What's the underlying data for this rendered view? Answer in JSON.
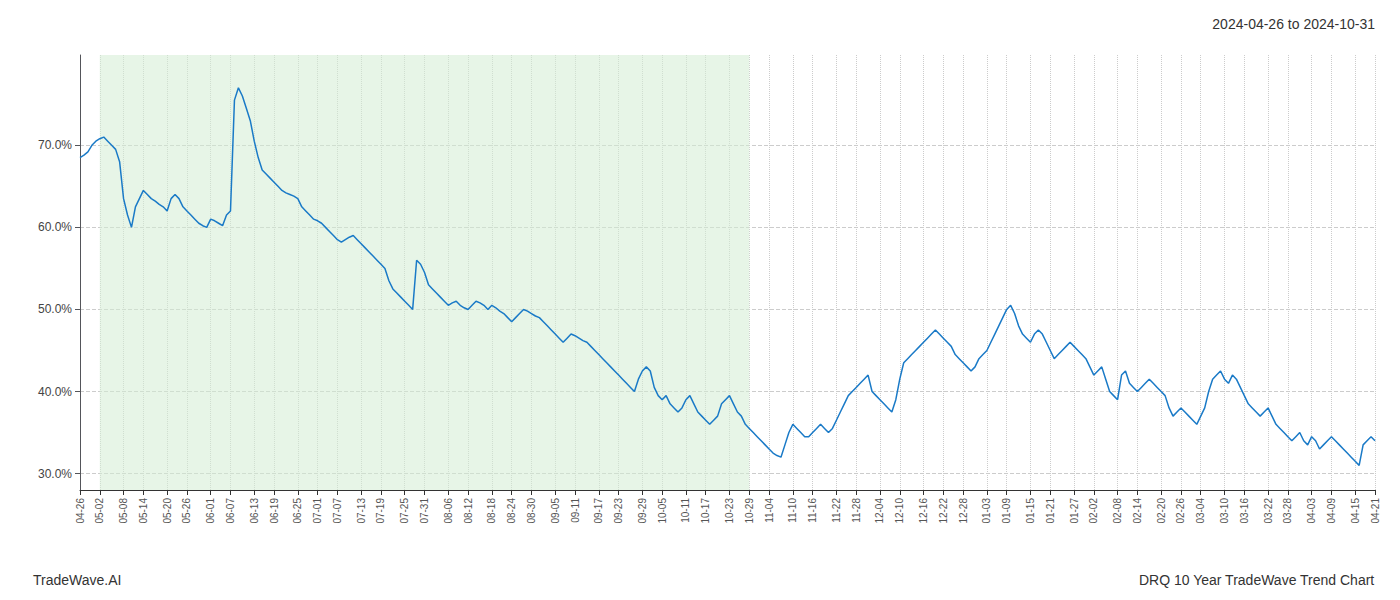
{
  "chart_data": {
    "type": "line",
    "title": "2024-04-26 to 2024-10-31",
    "annotations": [
      "TradeWave.AI",
      "DRQ 10 Year TradeWave Trend Chart"
    ],
    "color": "#1a7ac7",
    "shade": {
      "from": "05-02",
      "to": "10-29",
      "color": "#d4ecd4"
    },
    "grid": true,
    "ylim": [
      28.0,
      81.0
    ],
    "yticks": [
      {
        "value": 30.0,
        "label": "30.0%"
      },
      {
        "value": 40.0,
        "label": "40.0%"
      },
      {
        "value": 50.0,
        "label": "50.0%"
      },
      {
        "value": 60.0,
        "label": "60.0%"
      },
      {
        "value": 70.0,
        "label": "70.0%"
      }
    ],
    "categories": [
      "04-26",
      null,
      null,
      null,
      null,
      "05-02",
      null,
      null,
      null,
      null,
      null,
      "05-08",
      null,
      null,
      null,
      null,
      "05-14",
      null,
      null,
      null,
      null,
      null,
      "05-20",
      null,
      null,
      null,
      null,
      "05-26",
      null,
      null,
      null,
      null,
      null,
      "06-01",
      null,
      null,
      null,
      null,
      "06-07",
      null,
      null,
      null,
      null,
      null,
      "06-13",
      null,
      null,
      null,
      null,
      "06-19",
      null,
      null,
      null,
      null,
      null,
      "06-25",
      null,
      null,
      null,
      null,
      "07-01",
      null,
      null,
      null,
      null,
      "07-07",
      null,
      null,
      null,
      null,
      null,
      "07-13",
      null,
      null,
      null,
      null,
      "07-19",
      null,
      null,
      null,
      null,
      null,
      "07-25",
      null,
      null,
      null,
      null,
      "07-31",
      null,
      null,
      null,
      null,
      null,
      "08-06",
      null,
      null,
      null,
      null,
      "08-12",
      null,
      null,
      null,
      null,
      null,
      "08-18",
      null,
      null,
      null,
      null,
      "08-24",
      null,
      null,
      null,
      null,
      "08-30",
      null,
      null,
      null,
      null,
      null,
      "09-05",
      null,
      null,
      null,
      null,
      "09-11",
      null,
      null,
      null,
      null,
      null,
      "09-17",
      null,
      null,
      null,
      null,
      "09-23",
      null,
      null,
      null,
      null,
      null,
      "09-29",
      null,
      null,
      null,
      null,
      "10-05",
      null,
      null,
      null,
      null,
      null,
      "10-11",
      null,
      null,
      null,
      null,
      "10-17",
      null,
      null,
      null,
      null,
      null,
      "10-23",
      null,
      null,
      null,
      null,
      "10-29",
      null,
      null,
      null,
      null,
      "11-04",
      null,
      null,
      null,
      null,
      null,
      "11-10",
      null,
      null,
      null,
      null,
      "11-16",
      null,
      null,
      null,
      null,
      null,
      "11-22",
      null,
      null,
      null,
      null,
      "11-28",
      null,
      null,
      null,
      null,
      null,
      "12-04",
      null,
      null,
      null,
      null,
      "12-10",
      null,
      null,
      null,
      null,
      null,
      "12-16",
      null,
      null,
      null,
      null,
      "12-22",
      null,
      null,
      null,
      null,
      "12-28",
      null,
      null,
      null,
      null,
      null,
      "01-03",
      null,
      null,
      null,
      null,
      "01-09",
      null,
      null,
      null,
      null,
      null,
      "01-15",
      null,
      null,
      null,
      null,
      "01-21",
      null,
      null,
      null,
      null,
      null,
      "01-27",
      null,
      null,
      null,
      null,
      "02-02",
      null,
      null,
      null,
      null,
      null,
      "02-08",
      null,
      null,
      null,
      null,
      "02-14",
      null,
      null,
      null,
      null,
      null,
      "02-20",
      null,
      null,
      null,
      null,
      "02-26",
      null,
      null,
      null,
      null,
      "03-04",
      null,
      null,
      null,
      null,
      null,
      "03-10",
      null,
      null,
      null,
      null,
      "03-16",
      null,
      null,
      null,
      null,
      null,
      "03-22",
      null,
      null,
      null,
      null,
      "03-28",
      null,
      null,
      null,
      null,
      null,
      "04-03",
      null,
      null,
      null,
      null,
      "04-09",
      null,
      null,
      null,
      null,
      null,
      "04-15",
      null,
      null,
      null,
      null,
      "04-21"
    ],
    "values": [
      68.5,
      68.8,
      69.2,
      70.0,
      70.5,
      70.8,
      71.0,
      70.5,
      70.0,
      69.5,
      68.0,
      63.5,
      61.5,
      60.0,
      62.5,
      63.5,
      64.5,
      64.0,
      63.5,
      63.2,
      62.8,
      62.5,
      62.0,
      63.5,
      64.0,
      63.5,
      62.5,
      62.0,
      61.5,
      61.0,
      60.5,
      60.2,
      60.0,
      61.0,
      60.8,
      60.5,
      60.2,
      61.5,
      62.0,
      75.5,
      77.0,
      76.0,
      74.5,
      73.0,
      70.5,
      68.5,
      67.0,
      66.5,
      66.0,
      65.5,
      65.0,
      64.5,
      64.2,
      64.0,
      63.8,
      63.5,
      62.5,
      62.0,
      61.5,
      61.0,
      60.8,
      60.5,
      60.0,
      59.5,
      59.0,
      58.5,
      58.2,
      58.5,
      58.8,
      59.0,
      58.5,
      58.0,
      57.5,
      57.0,
      56.5,
      56.0,
      55.5,
      55.0,
      53.5,
      52.5,
      52.0,
      51.5,
      51.0,
      50.5,
      50.0,
      56.0,
      55.5,
      54.5,
      53.0,
      52.5,
      52.0,
      51.5,
      51.0,
      50.5,
      50.8,
      51.0,
      50.5,
      50.2,
      50.0,
      50.5,
      51.0,
      50.8,
      50.5,
      50.0,
      50.5,
      50.2,
      49.8,
      49.5,
      49.0,
      48.5,
      49.0,
      49.5,
      50.0,
      49.8,
      49.5,
      49.2,
      49.0,
      48.5,
      48.0,
      47.5,
      47.0,
      46.5,
      46.0,
      46.5,
      47.0,
      46.8,
      46.5,
      46.2,
      46.0,
      45.5,
      45.0,
      44.5,
      44.0,
      43.5,
      43.0,
      42.5,
      42.0,
      41.5,
      41.0,
      40.5,
      40.0,
      41.5,
      42.5,
      43.0,
      42.5,
      40.5,
      39.5,
      39.0,
      39.5,
      38.5,
      38.0,
      37.5,
      38.0,
      39.0,
      39.5,
      38.5,
      37.5,
      37.0,
      36.5,
      36.0,
      36.5,
      37.0,
      38.5,
      39.0,
      39.5,
      38.5,
      37.5,
      37.0,
      36.0,
      35.5,
      35.0,
      34.5,
      34.0,
      33.5,
      33.0,
      32.5,
      32.2,
      32.0,
      33.5,
      35.0,
      36.0,
      35.5,
      35.0,
      34.5,
      34.5,
      35.0,
      35.5,
      36.0,
      35.5,
      35.0,
      35.5,
      36.5,
      37.5,
      38.5,
      39.5,
      40.0,
      40.5,
      41.0,
      41.5,
      42.0,
      40.0,
      39.5,
      39.0,
      38.5,
      38.0,
      37.5,
      39.0,
      41.5,
      43.5,
      44.0,
      44.5,
      45.0,
      45.5,
      46.0,
      46.5,
      47.0,
      47.5,
      47.0,
      46.5,
      46.0,
      45.5,
      44.5,
      44.0,
      43.5,
      43.0,
      42.5,
      43.0,
      44.0,
      44.5,
      45.0,
      46.0,
      47.0,
      48.0,
      49.0,
      50.0,
      50.5,
      49.5,
      48.0,
      47.0,
      46.5,
      46.0,
      47.0,
      47.5,
      47.0,
      46.0,
      45.0,
      44.0,
      44.5,
      45.0,
      45.5,
      46.0,
      45.5,
      45.0,
      44.5,
      44.0,
      43.0,
      42.0,
      42.5,
      43.0,
      41.5,
      40.0,
      39.5,
      39.0,
      42.0,
      42.5,
      41.0,
      40.5,
      40.0,
      40.5,
      41.0,
      41.5,
      41.0,
      40.5,
      40.0,
      39.5,
      38.0,
      37.0,
      37.5,
      38.0,
      37.5,
      37.0,
      36.5,
      36.0,
      37.0,
      38.0,
      40.0,
      41.5,
      42.0,
      42.5,
      41.5,
      41.0,
      42.0,
      41.5,
      40.5,
      39.5,
      38.5,
      38.0,
      37.5,
      37.0,
      37.5,
      38.0,
      37.0,
      36.0,
      35.5,
      35.0,
      34.5,
      34.0,
      34.5,
      35.0,
      34.0,
      33.5,
      34.5,
      34.0,
      33.0,
      33.5,
      34.0,
      34.5,
      34.0,
      33.5,
      33.0,
      32.5,
      32.0,
      31.5,
      31.0,
      33.5,
      34.0,
      34.5,
      34.0
    ]
  }
}
